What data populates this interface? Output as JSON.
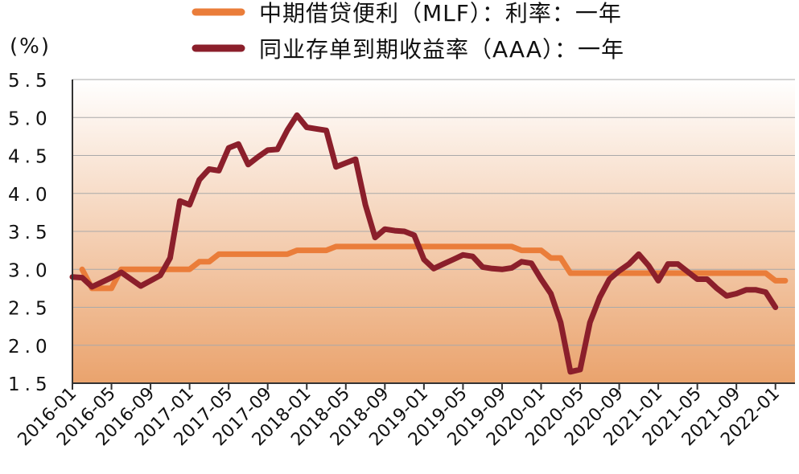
{
  "chart_data": {
    "type": "line",
    "unit_label": "(%)",
    "ylim": [
      1.5,
      5.5
    ],
    "yticks": [
      "5.5",
      "5.0",
      "4.5",
      "4.0",
      "3.5",
      "3.0",
      "2.5",
      "2.0",
      "1.5"
    ],
    "xlim": [
      "2016-01",
      "2022-03"
    ],
    "xticks": [
      "2016-01",
      "2016-05",
      "2016-09",
      "2017-01",
      "2017-05",
      "2017-09",
      "2018-01",
      "2018-05",
      "2018-09",
      "2019-01",
      "2019-05",
      "2019-09",
      "2020-01",
      "2020-05",
      "2020-09",
      "2021-01",
      "2021-05",
      "2021-09",
      "2022-01"
    ],
    "grid": true,
    "legend_position": "top",
    "colors": {
      "background_top": "#ffffff",
      "background_bottom": "#eaa36d",
      "mlf": "#ea7d3a",
      "ncd": "#8b1f2b",
      "grid": "#a9a9a9",
      "axis": "#333333"
    },
    "series": [
      {
        "name": "中期借贷便利（MLF）：利率：一年",
        "color": "#ea7d3a",
        "points": [
          [
            "2016-02",
            3.0
          ],
          [
            "2016-03",
            2.75
          ],
          [
            "2016-04",
            2.75
          ],
          [
            "2016-05",
            2.75
          ],
          [
            "2016-06",
            3.0
          ],
          [
            "2016-07",
            3.0
          ],
          [
            "2016-08",
            3.0
          ],
          [
            "2016-09",
            3.0
          ],
          [
            "2016-10",
            3.0
          ],
          [
            "2016-11",
            3.0
          ],
          [
            "2016-12",
            3.0
          ],
          [
            "2017-01",
            3.0
          ],
          [
            "2017-02",
            3.1
          ],
          [
            "2017-03",
            3.1
          ],
          [
            "2017-04",
            3.2
          ],
          [
            "2017-05",
            3.2
          ],
          [
            "2017-06",
            3.2
          ],
          [
            "2017-07",
            3.2
          ],
          [
            "2017-08",
            3.2
          ],
          [
            "2017-09",
            3.2
          ],
          [
            "2017-10",
            3.2
          ],
          [
            "2017-11",
            3.2
          ],
          [
            "2017-12",
            3.25
          ],
          [
            "2018-01",
            3.25
          ],
          [
            "2018-02",
            3.25
          ],
          [
            "2018-03",
            3.25
          ],
          [
            "2018-04",
            3.3
          ],
          [
            "2018-05",
            3.3
          ],
          [
            "2018-06",
            3.3
          ],
          [
            "2018-07",
            3.3
          ],
          [
            "2018-08",
            3.3
          ],
          [
            "2018-09",
            3.3
          ],
          [
            "2018-10",
            3.3
          ],
          [
            "2018-11",
            3.3
          ],
          [
            "2018-12",
            3.3
          ],
          [
            "2019-01",
            3.3
          ],
          [
            "2019-02",
            3.3
          ],
          [
            "2019-03",
            3.3
          ],
          [
            "2019-04",
            3.3
          ],
          [
            "2019-05",
            3.3
          ],
          [
            "2019-06",
            3.3
          ],
          [
            "2019-07",
            3.3
          ],
          [
            "2019-08",
            3.3
          ],
          [
            "2019-09",
            3.3
          ],
          [
            "2019-10",
            3.3
          ],
          [
            "2019-11",
            3.25
          ],
          [
            "2019-12",
            3.25
          ],
          [
            "2020-01",
            3.25
          ],
          [
            "2020-02",
            3.15
          ],
          [
            "2020-03",
            3.15
          ],
          [
            "2020-04",
            2.95
          ],
          [
            "2020-05",
            2.95
          ],
          [
            "2020-06",
            2.95
          ],
          [
            "2020-07",
            2.95
          ],
          [
            "2020-08",
            2.95
          ],
          [
            "2020-09",
            2.95
          ],
          [
            "2020-10",
            2.95
          ],
          [
            "2020-11",
            2.95
          ],
          [
            "2020-12",
            2.95
          ],
          [
            "2021-01",
            2.95
          ],
          [
            "2021-02",
            2.95
          ],
          [
            "2021-03",
            2.95
          ],
          [
            "2021-04",
            2.95
          ],
          [
            "2021-05",
            2.95
          ],
          [
            "2021-06",
            2.95
          ],
          [
            "2021-07",
            2.95
          ],
          [
            "2021-08",
            2.95
          ],
          [
            "2021-09",
            2.95
          ],
          [
            "2021-10",
            2.95
          ],
          [
            "2021-11",
            2.95
          ],
          [
            "2021-12",
            2.95
          ],
          [
            "2022-01",
            2.85
          ],
          [
            "2022-02",
            2.85
          ]
        ]
      },
      {
        "name": "同业存单到期收益率（AAA）：一年",
        "color": "#8b1f2b",
        "points": [
          [
            "2016-01",
            2.9
          ],
          [
            "2016-02",
            2.89
          ],
          [
            "2016-03",
            2.77
          ],
          [
            "2016-04",
            2.83
          ],
          [
            "2016-05",
            2.89
          ],
          [
            "2016-06",
            2.96
          ],
          [
            "2016-07",
            2.87
          ],
          [
            "2016-08",
            2.78
          ],
          [
            "2016-09",
            2.85
          ],
          [
            "2016-10",
            2.92
          ],
          [
            "2016-11",
            3.15
          ],
          [
            "2016-12",
            3.9
          ],
          [
            "2017-01",
            3.85
          ],
          [
            "2017-02",
            4.18
          ],
          [
            "2017-03",
            4.32
          ],
          [
            "2017-04",
            4.3
          ],
          [
            "2017-05",
            4.6
          ],
          [
            "2017-06",
            4.65
          ],
          [
            "2017-07",
            4.38
          ],
          [
            "2017-08",
            4.48
          ],
          [
            "2017-09",
            4.57
          ],
          [
            "2017-10",
            4.58
          ],
          [
            "2017-11",
            4.83
          ],
          [
            "2017-12",
            5.03
          ],
          [
            "2018-01",
            4.87
          ],
          [
            "2018-02",
            4.85
          ],
          [
            "2018-03",
            4.83
          ],
          [
            "2018-04",
            4.35
          ],
          [
            "2018-05",
            4.4
          ],
          [
            "2018-06",
            4.45
          ],
          [
            "2018-07",
            3.85
          ],
          [
            "2018-08",
            3.42
          ],
          [
            "2018-09",
            3.53
          ],
          [
            "2018-10",
            3.51
          ],
          [
            "2018-11",
            3.5
          ],
          [
            "2018-12",
            3.45
          ],
          [
            "2019-01",
            3.13
          ],
          [
            "2019-02",
            3.01
          ],
          [
            "2019-03",
            3.07
          ],
          [
            "2019-04",
            3.13
          ],
          [
            "2019-05",
            3.19
          ],
          [
            "2019-06",
            3.17
          ],
          [
            "2019-07",
            3.03
          ],
          [
            "2019-08",
            3.01
          ],
          [
            "2019-09",
            3.0
          ],
          [
            "2019-10",
            3.02
          ],
          [
            "2019-11",
            3.1
          ],
          [
            "2019-12",
            3.08
          ],
          [
            "2020-01",
            2.87
          ],
          [
            "2020-02",
            2.68
          ],
          [
            "2020-03",
            2.3
          ],
          [
            "2020-04",
            1.65
          ],
          [
            "2020-05",
            1.68
          ],
          [
            "2020-06",
            2.3
          ],
          [
            "2020-07",
            2.63
          ],
          [
            "2020-08",
            2.87
          ],
          [
            "2020-09",
            2.98
          ],
          [
            "2020-10",
            3.07
          ],
          [
            "2020-11",
            3.2
          ],
          [
            "2020-12",
            3.05
          ],
          [
            "2021-01",
            2.85
          ],
          [
            "2021-02",
            3.07
          ],
          [
            "2021-03",
            3.07
          ],
          [
            "2021-04",
            2.97
          ],
          [
            "2021-05",
            2.87
          ],
          [
            "2021-06",
            2.87
          ],
          [
            "2021-07",
            2.75
          ],
          [
            "2021-08",
            2.65
          ],
          [
            "2021-09",
            2.68
          ],
          [
            "2021-10",
            2.73
          ],
          [
            "2021-11",
            2.73
          ],
          [
            "2021-12",
            2.7
          ],
          [
            "2022-01",
            2.5
          ]
        ]
      }
    ]
  }
}
